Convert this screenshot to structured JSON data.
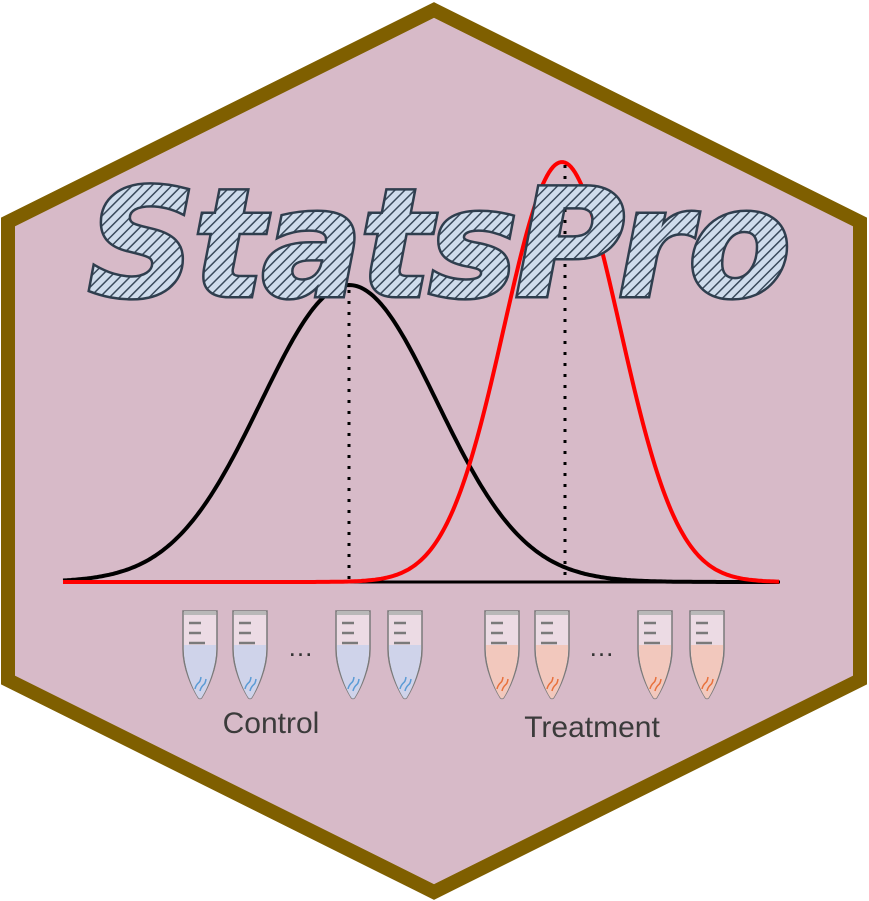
{
  "logo": {
    "title": "StatsPro",
    "hex_fill": "#d7bac8",
    "hex_border": "#7f5f00",
    "title_color": "#3a4a5c"
  },
  "curves": {
    "control_color": "#000000",
    "treatment_color": "#ff0000"
  },
  "groups": [
    {
      "label": "Control",
      "separator": "…",
      "tube_fill": "#cfd3ea",
      "squiggle_color": "#5b9bd5"
    },
    {
      "label": "Treatment",
      "separator": "…",
      "tube_fill": "#f2c8bd",
      "squiggle_color": "#e8713c"
    }
  ]
}
